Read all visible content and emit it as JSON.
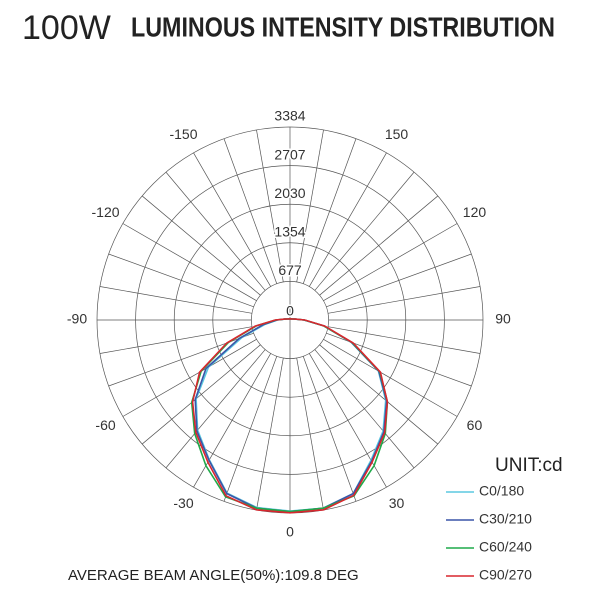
{
  "chart_data": {
    "type": "polar",
    "title_power": "100W",
    "title": "LUMINOUS INTENSITY DISTRIBUTION",
    "unit": "UNIT:cd",
    "footer": "AVERAGE BEAM ANGLE(50%):109.8 DEG",
    "rlim": [
      0,
      3384
    ],
    "rticks": [
      0,
      677,
      1354,
      2030,
      2707,
      3384
    ],
    "angle_ticks": [
      -150,
      -120,
      -90,
      -60,
      -30,
      0,
      30,
      60,
      90,
      120,
      150
    ],
    "x": [
      -180,
      -170,
      -160,
      -150,
      -140,
      -130,
      -120,
      -110,
      -100,
      -90,
      -80,
      -70,
      -60,
      -50,
      -40,
      -30,
      -20,
      -10,
      0,
      10,
      20,
      30,
      40,
      50,
      60,
      70,
      80,
      90,
      100,
      110,
      120,
      130,
      140,
      150,
      160,
      170,
      180
    ],
    "series": [
      {
        "name": "C0/180",
        "color": "#5bc8e0",
        "values": [
          20,
          20,
          20,
          22,
          25,
          30,
          35,
          50,
          90,
          220,
          450,
          900,
          1650,
          2150,
          2520,
          2830,
          3230,
          3340,
          3350,
          3350,
          3240,
          2840,
          2540,
          2190,
          1790,
          1140,
          600,
          240,
          90,
          50,
          35,
          30,
          25,
          22,
          20,
          20,
          20
        ]
      },
      {
        "name": "C30/210",
        "color": "#3a55a8",
        "values": [
          20,
          20,
          20,
          22,
          25,
          30,
          35,
          50,
          90,
          230,
          480,
          950,
          1700,
          2170,
          2540,
          2840,
          3240,
          3350,
          3360,
          3350,
          3240,
          2860,
          2560,
          2210,
          1800,
          1150,
          610,
          250,
          90,
          50,
          35,
          30,
          25,
          22,
          20,
          20,
          20
        ]
      },
      {
        "name": "C60/240",
        "color": "#1faa4a",
        "values": [
          20,
          20,
          20,
          22,
          25,
          30,
          35,
          50,
          90,
          250,
          600,
          1150,
          1800,
          2250,
          2600,
          2950,
          3300,
          3350,
          3360,
          3350,
          3280,
          2950,
          2600,
          2230,
          1820,
          1160,
          600,
          250,
          90,
          50,
          35,
          30,
          25,
          22,
          20,
          20,
          20
        ]
      },
      {
        "name": "C90/270",
        "color": "#d9262e",
        "values": [
          20,
          20,
          20,
          22,
          25,
          30,
          35,
          50,
          90,
          260,
          620,
          1180,
          1830,
          2230,
          2570,
          2880,
          3280,
          3380,
          3380,
          3380,
          3270,
          2880,
          2580,
          2230,
          1830,
          1180,
          620,
          260,
          90,
          50,
          35,
          30,
          25,
          22,
          20,
          20,
          20
        ]
      }
    ]
  }
}
